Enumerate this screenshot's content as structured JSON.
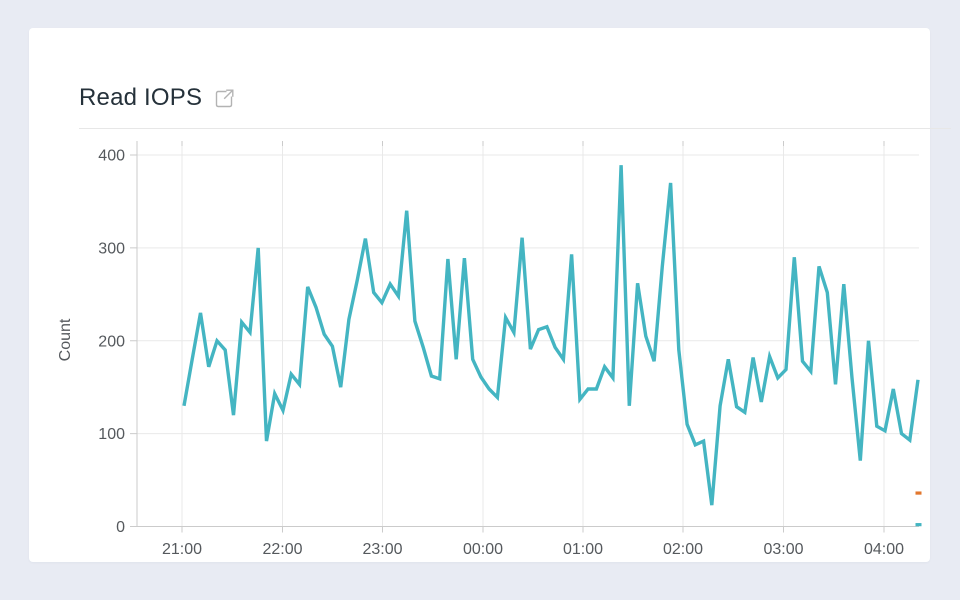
{
  "header": {
    "title": "Read IOPS",
    "external_link_icon": "external-link-icon"
  },
  "colors": {
    "page_background": "#e8ebf3",
    "card_background": "#ffffff",
    "grid_line": "#e9e9e9",
    "axis_line": "#cbcbcb",
    "tick_text": "#55595d",
    "title_text": "#25313a",
    "icon": "#b3b3b3",
    "line": "#44b5c2",
    "marker_orange": "#e2772d"
  },
  "chart_data": {
    "type": "line",
    "title": "Read IOPS",
    "xlabel": "",
    "ylabel": "Count",
    "ylim": [
      0,
      400
    ],
    "y_ticks": [
      0,
      100,
      200,
      300,
      400
    ],
    "x_tick_labels": [
      "21:00",
      "22:00",
      "23:00",
      "00:00",
      "01:00",
      "02:00",
      "03:00",
      "04:00"
    ],
    "x_start_time": "21:00",
    "x_end_time": "04:25",
    "x_interval_minutes": 5,
    "grid": true,
    "legend_position": "none",
    "series": [
      {
        "name": "Read IOPS",
        "color": "#44b5c2",
        "values": [
          130,
          180,
          230,
          172,
          200,
          190,
          120,
          220,
          209,
          300,
          92,
          143,
          125,
          164,
          153,
          258,
          236,
          207,
          194,
          150,
          223,
          265,
          310,
          252,
          241,
          261,
          248,
          340,
          221,
          193,
          162,
          159,
          288,
          180,
          289,
          180,
          161,
          148,
          139,
          225,
          209,
          311,
          191,
          212,
          215,
          193,
          180,
          293,
          137,
          148,
          148,
          172,
          160,
          389,
          130,
          262,
          205,
          178,
          280,
          370,
          190,
          110,
          88,
          92,
          23,
          130,
          180,
          129,
          123,
          182,
          134,
          183,
          160,
          169,
          290,
          178,
          167,
          280,
          252,
          153,
          261,
          160,
          71,
          200,
          108,
          103,
          148,
          100,
          93,
          158
        ]
      }
    ],
    "right_edge_markers": [
      {
        "color": "#e2772d",
        "value": 36
      },
      {
        "color": "#44b5c2",
        "value": 2
      }
    ]
  }
}
